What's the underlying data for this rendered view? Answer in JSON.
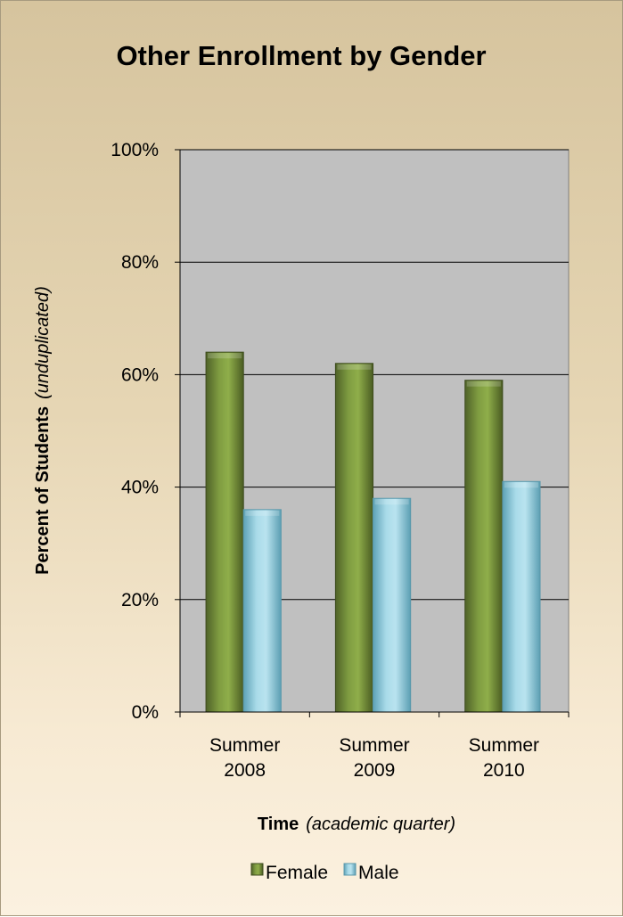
{
  "chart_data": {
    "type": "bar",
    "title": "Other Enrollment by Gender",
    "categories": [
      [
        "Summer",
        "2008"
      ],
      [
        "Summer",
        "2009"
      ],
      [
        "Summer",
        "2010"
      ]
    ],
    "series": [
      {
        "name": "Female",
        "values": [
          64,
          62,
          59
        ],
        "color": "#77933c"
      },
      {
        "name": "Male",
        "values": [
          36,
          38,
          41
        ],
        "color": "#93cddd"
      }
    ],
    "ylim": [
      0,
      100
    ],
    "yticks": [
      0,
      20,
      40,
      60,
      80,
      100
    ],
    "ytick_suffix": "%",
    "ylabel": {
      "main": "Percent of Students",
      "note": "(unduplicated)"
    },
    "xlabel": {
      "main": "Time",
      "note": "(academic quarter)"
    },
    "grid": true,
    "legend_position": "bottom",
    "plot_background": "#c0c0c0"
  }
}
